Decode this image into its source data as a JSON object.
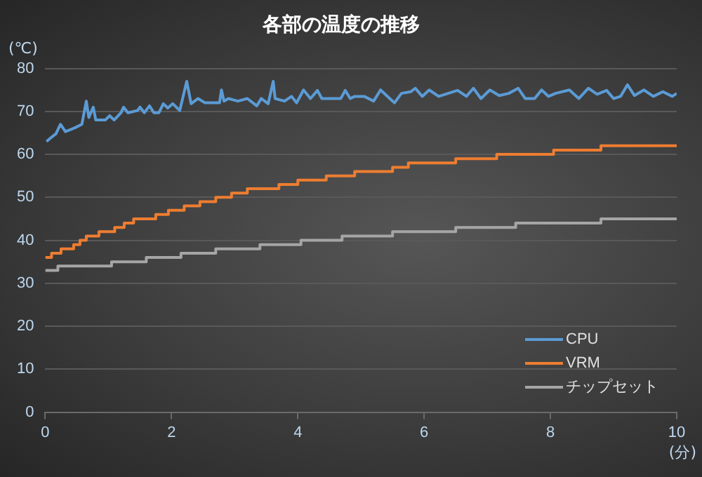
{
  "chart_data": {
    "type": "line",
    "title": "各部の温度の推移",
    "ylabel": "(℃)",
    "xlabel": "(分)",
    "xlim": [
      0,
      10
    ],
    "xticks": [
      0,
      2,
      4,
      6,
      8,
      10
    ],
    "ylim": [
      0,
      80
    ],
    "yticks": [
      0,
      10,
      20,
      30,
      40,
      50,
      60,
      70,
      80
    ],
    "grid": "y",
    "legend": "bottom right",
    "marker": "none",
    "line_style": "solid",
    "series": [
      {
        "name": "CPU",
        "color": "#5b9bd5",
        "x": [
          0.02,
          0.1,
          0.17,
          0.24,
          0.32,
          0.47,
          0.58,
          0.65,
          0.69,
          0.76,
          0.8,
          0.95,
          1.02,
          1.09,
          1.2,
          1.24,
          1.31,
          1.46,
          1.5,
          1.57,
          1.65,
          1.72,
          1.8,
          1.87,
          1.94,
          2.02,
          2.13,
          2.24,
          2.31,
          2.42,
          2.53,
          2.76,
          2.79,
          2.83,
          2.9,
          3.05,
          3.2,
          3.35,
          3.42,
          3.53,
          3.61,
          3.64,
          3.79,
          3.9,
          3.98,
          4.09,
          4.2,
          4.31,
          4.38,
          4.68,
          4.75,
          4.83,
          4.9,
          5.05,
          5.2,
          5.31,
          5.42,
          5.53,
          5.64,
          5.79,
          5.86,
          5.97,
          6.08,
          6.23,
          6.38,
          6.53,
          6.67,
          6.78,
          6.9,
          7.04,
          7.19,
          7.34,
          7.49,
          7.6,
          7.75,
          7.86,
          7.97,
          8.08,
          8.3,
          8.45,
          8.6,
          8.74,
          8.89,
          9.0,
          9.11,
          9.22,
          9.33,
          9.48,
          9.63,
          9.78,
          9.93,
          10.0
        ],
        "values": [
          63,
          64,
          64.8,
          67,
          65.3,
          66.2,
          67,
          72.4,
          68.6,
          71,
          68,
          68,
          69,
          68,
          69.7,
          71,
          69.7,
          70.2,
          71,
          69.7,
          71.3,
          69.7,
          69.7,
          71.8,
          70.8,
          71.8,
          70.2,
          77,
          71.8,
          73,
          72,
          72,
          75,
          72.4,
          73,
          72.4,
          73,
          71.3,
          73,
          71.8,
          77,
          73,
          72.4,
          73.5,
          72,
          75,
          73,
          74.9,
          73,
          73,
          74.9,
          73,
          73.5,
          73.5,
          72.4,
          75,
          73.5,
          72,
          74.2,
          74.6,
          75.4,
          73.5,
          75,
          73.5,
          74.2,
          74.9,
          73.5,
          75.4,
          73,
          75,
          73.7,
          74.2,
          75.4,
          73,
          73,
          75,
          73.5,
          74.2,
          75,
          73,
          75.4,
          74,
          74.9,
          73,
          73.5,
          76.2,
          73.7,
          75,
          73.5,
          74.6,
          73.5,
          74.2
        ]
      },
      {
        "name": "VRM",
        "color": "#ed7d31",
        "type": "step",
        "x": [
          0,
          0.1,
          0.25,
          0.45,
          0.55,
          0.65,
          0.85,
          1.1,
          1.25,
          1.4,
          1.75,
          1.95,
          2.2,
          2.45,
          2.7,
          2.95,
          3.2,
          3.7,
          4.0,
          4.45,
          4.9,
          5.5,
          5.75,
          6.5,
          7.15,
          8.05,
          8.8,
          10
        ],
        "values": [
          36,
          37,
          38,
          39,
          40,
          41,
          42,
          43,
          44,
          45,
          46,
          47,
          48,
          49,
          50,
          51,
          52,
          53,
          54,
          55,
          56,
          57,
          58,
          59,
          60,
          61,
          62,
          62
        ]
      },
      {
        "name": "チップセット",
        "color": "#a5a5a5",
        "type": "step",
        "x": [
          0,
          0.2,
          1.05,
          1.6,
          2.15,
          2.7,
          3.4,
          4.05,
          4.7,
          5.5,
          6.5,
          7.45,
          8.8,
          10
        ],
        "values": [
          33,
          34,
          35,
          36,
          37,
          38,
          39,
          40,
          41,
          42,
          43,
          44,
          45,
          45
        ]
      }
    ]
  }
}
